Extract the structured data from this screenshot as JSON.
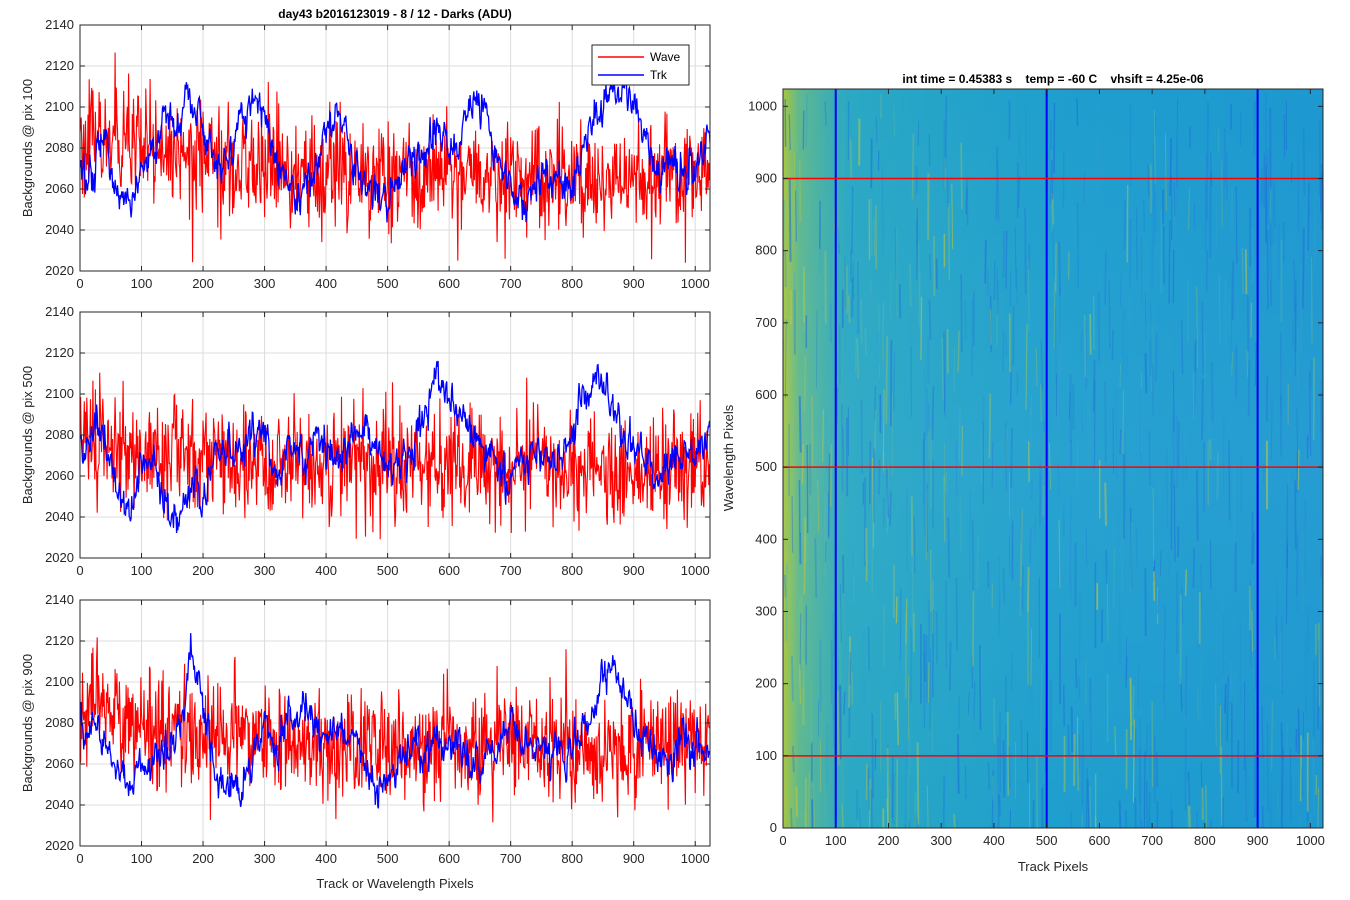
{
  "figure_title": "day43 b2016123019 - 8 / 12 - Darks (ADU)",
  "colors": {
    "wave": "#ff0000",
    "trk": "#0000ff",
    "grid": "#dcdcdc",
    "axis": "#262626",
    "heat_low": "#1f5fd6",
    "heat_mid": "#1aa6c8",
    "heat_high": "#b7c23a"
  },
  "chart_data": [
    {
      "type": "line",
      "title": "day43 b2016123019 - 8 / 12 - Darks (ADU)",
      "xlabel": "",
      "ylabel": "Backgrounds @ pix 100",
      "xlim": [
        0,
        1024
      ],
      "ylim": [
        2020,
        2140
      ],
      "xticks": [
        "0",
        "100",
        "200",
        "300",
        "400",
        "500",
        "600",
        "700",
        "800",
        "900",
        "1000"
      ],
      "yticks": [
        "2020",
        "2040",
        "2060",
        "2080",
        "2100",
        "2120",
        "2140"
      ],
      "grid": true,
      "legend": {
        "placement": "top-right",
        "entries": [
          "Wave",
          "Trk"
        ]
      },
      "series": [
        {
          "name": "Wave",
          "color": "#ff0000",
          "mean": 2072,
          "noise": 15,
          "x": [
            0,
            100,
            200,
            300,
            400,
            500,
            600,
            700,
            800,
            900,
            1024
          ],
          "trend": [
            2085,
            2078,
            2075,
            2070,
            2068,
            2065,
            2066,
            2068,
            2067,
            2064,
            2070
          ]
        },
        {
          "name": "Trk",
          "color": "#0000ff",
          "x": [
            0,
            20,
            40,
            60,
            80,
            100,
            120,
            140,
            160,
            180,
            200,
            220,
            240,
            260,
            280,
            300,
            320,
            340,
            360,
            380,
            400,
            420,
            440,
            460,
            480,
            500,
            520,
            540,
            560,
            580,
            600,
            620,
            640,
            660,
            680,
            700,
            720,
            740,
            760,
            780,
            800,
            820,
            840,
            860,
            880,
            900,
            920,
            940,
            960,
            980,
            1000,
            1024
          ],
          "values": [
            2065,
            2068,
            2085,
            2060,
            2055,
            2068,
            2080,
            2095,
            2090,
            2100,
            2092,
            2072,
            2070,
            2090,
            2105,
            2098,
            2072,
            2060,
            2058,
            2066,
            2088,
            2098,
            2078,
            2064,
            2056,
            2053,
            2062,
            2075,
            2080,
            2088,
            2078,
            2084,
            2102,
            2094,
            2072,
            2060,
            2048,
            2058,
            2070,
            2060,
            2055,
            2080,
            2098,
            2108,
            2110,
            2100,
            2085,
            2070,
            2075,
            2065,
            2070,
            2085
          ]
        }
      ]
    },
    {
      "type": "line",
      "title": "",
      "xlabel": "",
      "ylabel": "Backgrounds @ pix 500",
      "xlim": [
        0,
        1024
      ],
      "ylim": [
        2020,
        2140
      ],
      "xticks": [
        "0",
        "100",
        "200",
        "300",
        "400",
        "500",
        "600",
        "700",
        "800",
        "900",
        "1000"
      ],
      "yticks": [
        "2020",
        "2040",
        "2060",
        "2080",
        "2100",
        "2120",
        "2140"
      ],
      "grid": true,
      "series": [
        {
          "name": "Wave",
          "color": "#ff0000",
          "mean": 2068,
          "noise": 15,
          "x": [
            0,
            100,
            200,
            300,
            400,
            500,
            600,
            700,
            800,
            900,
            1024
          ],
          "trend": [
            2082,
            2072,
            2070,
            2068,
            2066,
            2065,
            2064,
            2065,
            2064,
            2062,
            2066
          ]
        },
        {
          "name": "Trk",
          "color": "#0000ff",
          "x": [
            0,
            20,
            40,
            60,
            80,
            100,
            120,
            140,
            160,
            180,
            200,
            220,
            240,
            260,
            280,
            300,
            320,
            340,
            360,
            380,
            400,
            420,
            440,
            460,
            480,
            500,
            520,
            540,
            560,
            580,
            600,
            620,
            640,
            660,
            680,
            700,
            720,
            740,
            760,
            780,
            800,
            820,
            840,
            860,
            880,
            900,
            920,
            940,
            960,
            980,
            1000,
            1024
          ],
          "values": [
            2070,
            2085,
            2080,
            2052,
            2045,
            2062,
            2070,
            2045,
            2040,
            2055,
            2048,
            2070,
            2075,
            2072,
            2078,
            2080,
            2060,
            2075,
            2068,
            2080,
            2070,
            2065,
            2078,
            2080,
            2082,
            2068,
            2060,
            2075,
            2090,
            2112,
            2098,
            2085,
            2080,
            2072,
            2065,
            2060,
            2068,
            2072,
            2070,
            2065,
            2085,
            2100,
            2110,
            2095,
            2085,
            2075,
            2065,
            2060,
            2070,
            2075,
            2068,
            2090
          ]
        }
      ]
    },
    {
      "type": "line",
      "title": "",
      "xlabel": "Track or Wavelength Pixels",
      "ylabel": "Backgrounds @ pix 900",
      "xlim": [
        0,
        1024
      ],
      "ylim": [
        2020,
        2140
      ],
      "xticks": [
        "0",
        "100",
        "200",
        "300",
        "400",
        "500",
        "600",
        "700",
        "800",
        "900",
        "1000"
      ],
      "yticks": [
        "2020",
        "2040",
        "2060",
        "2080",
        "2100",
        "2120",
        "2140"
      ],
      "grid": true,
      "series": [
        {
          "name": "Wave",
          "color": "#ff0000",
          "mean": 2072,
          "noise": 15,
          "x": [
            0,
            100,
            200,
            300,
            400,
            500,
            600,
            700,
            800,
            900,
            1024
          ],
          "trend": [
            2090,
            2078,
            2074,
            2072,
            2070,
            2068,
            2068,
            2070,
            2068,
            2066,
            2070
          ]
        },
        {
          "name": "Trk",
          "color": "#0000ff",
          "x": [
            0,
            20,
            40,
            60,
            80,
            100,
            120,
            140,
            160,
            180,
            200,
            220,
            240,
            260,
            280,
            300,
            320,
            340,
            360,
            380,
            400,
            420,
            440,
            460,
            480,
            500,
            520,
            540,
            560,
            580,
            600,
            620,
            640,
            660,
            680,
            700,
            720,
            740,
            760,
            780,
            800,
            820,
            840,
            860,
            880,
            900,
            920,
            940,
            960,
            980,
            1000,
            1024
          ],
          "values": [
            2075,
            2080,
            2072,
            2055,
            2050,
            2062,
            2058,
            2065,
            2080,
            2108,
            2090,
            2055,
            2042,
            2048,
            2065,
            2078,
            2070,
            2082,
            2085,
            2078,
            2070,
            2080,
            2075,
            2065,
            2050,
            2048,
            2062,
            2068,
            2065,
            2072,
            2070,
            2068,
            2060,
            2065,
            2070,
            2078,
            2072,
            2068,
            2070,
            2065,
            2068,
            2075,
            2088,
            2108,
            2098,
            2080,
            2070,
            2060,
            2065,
            2072,
            2070,
            2068
          ]
        }
      ]
    },
    {
      "type": "heatmap",
      "title": "int time = 0.45383 s    temp = -60 C    vhsift = 4.25e-06",
      "xlabel": "Track Pixels",
      "ylabel": "Wavelength Pixels",
      "xlim": [
        0,
        1024
      ],
      "ylim": [
        0,
        1024
      ],
      "xticks": [
        "0",
        "100",
        "200",
        "300",
        "400",
        "500",
        "600",
        "700",
        "800",
        "900",
        "1000"
      ],
      "yticks": [
        "0",
        "100",
        "200",
        "300",
        "400",
        "500",
        "600",
        "700",
        "800",
        "900",
        "1000"
      ],
      "grid": false,
      "vertical_markers": [
        100,
        500,
        900
      ],
      "horizontal_markers": [
        100,
        500,
        900
      ],
      "vertical_marker_color": "#0000ff",
      "horizontal_marker_color": "#ff0000"
    }
  ]
}
